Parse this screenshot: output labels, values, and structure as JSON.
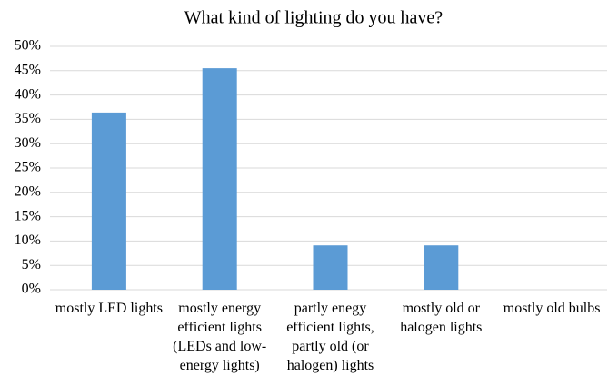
{
  "chart_data": {
    "type": "bar",
    "title": "What kind of lighting do you have?",
    "categories": [
      "mostly LED lights",
      "mostly energy efficient lights (LEDs and  low-energy lights)",
      "partly enegy efficient lights, partly old (or halogen) lights",
      "mostly old or halogen lights",
      "mostly old bulbs"
    ],
    "values": [
      36.4,
      45.5,
      9.1,
      9.1,
      0
    ],
    "color": "#5b9bd5",
    "ylim": [
      0,
      50
    ],
    "yticks": [
      {
        "value": 0,
        "label": "0%"
      },
      {
        "value": 5,
        "label": "5%"
      },
      {
        "value": 10,
        "label": "10%"
      },
      {
        "value": 15,
        "label": "15%"
      },
      {
        "value": 20,
        "label": "20%"
      },
      {
        "value": 25,
        "label": "25%"
      },
      {
        "value": 30,
        "label": "30%"
      },
      {
        "value": 35,
        "label": "35%"
      },
      {
        "value": 40,
        "label": "40%"
      },
      {
        "value": 45,
        "label": "45%"
      },
      {
        "value": 50,
        "label": "50%"
      }
    ],
    "grid": true
  }
}
